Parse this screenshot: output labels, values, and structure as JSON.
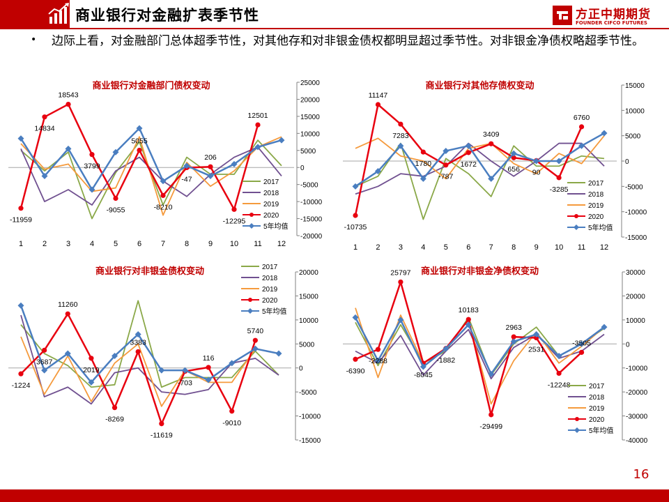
{
  "header": {
    "title": "商业银行对金融扩表季节性",
    "logo_cn": "方正中期期货",
    "logo_en": "FOUNDER CIFCO FUTURES",
    "accent_color": "#c00000"
  },
  "bullet": {
    "text": "边际上看，对金融部门总体超季节性，对其他存和对非银金债权都明显超过季节性。对非银金净债权略超季节性。"
  },
  "page_number": "16",
  "chart_data": [
    {
      "type": "line",
      "title": "商业银行对金融部门债权变动",
      "x": [
        "1",
        "2",
        "3",
        "4",
        "5",
        "6",
        "7",
        "8",
        "9",
        "10",
        "11",
        "12"
      ],
      "ylim": [
        -20000,
        25000
      ],
      "yticks": [
        -20000,
        -15000,
        -10000,
        -5000,
        0,
        5000,
        10000,
        15000,
        20000,
        25000
      ],
      "legend_position": "bottom-right",
      "series": [
        {
          "name": "2017",
          "color": "#8aa848",
          "marker": false,
          "values": [
            5000,
            -1000,
            4500,
            -15000,
            -1500,
            7500,
            -11000,
            3000,
            -2000,
            -2000,
            8000,
            500
          ]
        },
        {
          "name": "2018",
          "color": "#705090",
          "marker": false,
          "values": [
            5500,
            -10000,
            -6500,
            -11000,
            -1000,
            3000,
            -4000,
            -8500,
            -2000,
            3000,
            6000,
            -2500
          ]
        },
        {
          "name": "2019",
          "color": "#f59a3c",
          "marker": false,
          "values": [
            7000,
            -500,
            1000,
            -7000,
            -6000,
            9000,
            -14000,
            1500,
            -5500,
            -1000,
            6000,
            9000
          ]
        },
        {
          "name": "2020",
          "color": "#e8000f",
          "marker": true,
          "marker_shape": "circle",
          "values": [
            -11959,
            14834,
            18543,
            3799,
            -9055,
            5055,
            -8210,
            -47,
            206,
            -12295,
            12501,
            null
          ]
        },
        {
          "name": "5年均值",
          "color": "#4a7ec0",
          "marker": true,
          "marker_shape": "diamond",
          "values": [
            8500,
            -2500,
            5500,
            -6500,
            4500,
            11500,
            -4000,
            500,
            -2500,
            1000,
            6000,
            8000
          ]
        }
      ],
      "data_labels": {
        "series": "2020",
        "labels": [
          "-11959",
          "14834",
          "18543",
          "3799",
          "-9055",
          "5055",
          "-8210",
          "-47",
          "206",
          "-12295",
          "12501",
          ""
        ]
      }
    },
    {
      "type": "line",
      "title": "商业银行对其他存债权变动",
      "x": [
        "1",
        "2",
        "3",
        "4",
        "5",
        "6",
        "7",
        "8",
        "9",
        "10",
        "11",
        "12"
      ],
      "ylim": [
        -15000,
        15000
      ],
      "yticks": [
        -15000,
        -10000,
        -5000,
        0,
        5000,
        10000,
        15000
      ],
      "legend_position": "bottom-right",
      "series": [
        {
          "name": "2017",
          "color": "#8aa848",
          "marker": false,
          "values": [
            -5000,
            -3000,
            3500,
            -11500,
            500,
            -2500,
            -7000,
            3000,
            -1000,
            -1000,
            1000,
            500
          ]
        },
        {
          "name": "2018",
          "color": "#705090",
          "marker": false,
          "values": [
            -6500,
            -5000,
            -2500,
            -3000,
            -1000,
            3500,
            0,
            -3000,
            0,
            3500,
            3500,
            -1000
          ]
        },
        {
          "name": "2019",
          "color": "#f59a3c",
          "marker": false,
          "values": [
            2500,
            4500,
            1000,
            0,
            -3500,
            2500,
            3500,
            -500,
            -2500,
            1500,
            -500,
            5000
          ]
        },
        {
          "name": "2020",
          "color": "#e8000f",
          "marker": true,
          "marker_shape": "circle",
          "values": [
            -10735,
            11147,
            7283,
            1780,
            -787,
            1672,
            3409,
            656,
            90,
            -3285,
            6760,
            null
          ]
        },
        {
          "name": "5年均值",
          "color": "#4a7ec0",
          "marker": true,
          "marker_shape": "diamond",
          "values": [
            -5000,
            -2000,
            3000,
            -3500,
            2000,
            3000,
            -3500,
            1500,
            0,
            0,
            3000,
            5500
          ]
        }
      ],
      "data_labels": {
        "series": "2020",
        "labels": [
          "-10735",
          "11147",
          "7283",
          "1780",
          "-787",
          "1672",
          "3409",
          "656",
          "90",
          "-3285",
          "6760",
          ""
        ]
      }
    },
    {
      "type": "line",
      "title": "商业银行对非银金债权变动",
      "x": [
        "1",
        "2",
        "3",
        "4",
        "5",
        "6",
        "7",
        "8",
        "9",
        "10",
        "11",
        "12"
      ],
      "ylim": [
        -15000,
        20000
      ],
      "yticks": [
        -15000,
        -10000,
        -5000,
        0,
        5000,
        10000,
        15000,
        20000
      ],
      "legend_position": "top-right",
      "series": [
        {
          "name": "2017",
          "color": "#8aa848",
          "marker": false,
          "values": [
            9000,
            3000,
            500,
            -4000,
            -3500,
            14000,
            -4000,
            -2000,
            -2000,
            -2000,
            3500,
            -1500
          ]
        },
        {
          "name": "2018",
          "color": "#705090",
          "marker": false,
          "values": [
            11000,
            -6000,
            -4000,
            -7500,
            -1000,
            0,
            -5000,
            -5500,
            -4500,
            1000,
            2000,
            -1500
          ]
        },
        {
          "name": "2019",
          "color": "#f59a3c",
          "marker": false,
          "values": [
            6500,
            -5500,
            2500,
            -7000,
            1000,
            5000,
            -8000,
            -500,
            -3000,
            -3000,
            4000,
            3000
          ]
        },
        {
          "name": "2020",
          "color": "#e8000f",
          "marker": true,
          "marker_shape": "circle",
          "values": [
            -1224,
            3687,
            11260,
            2019,
            -8269,
            3383,
            -11619,
            -703,
            116,
            -9010,
            5740,
            null
          ]
        },
        {
          "name": "5年均值",
          "color": "#4a7ec0",
          "marker": true,
          "marker_shape": "diamond",
          "values": [
            13000,
            -500,
            3000,
            -3000,
            2500,
            7000,
            -500,
            -500,
            -2500,
            1000,
            4000,
            3000
          ]
        }
      ],
      "data_labels": {
        "series": "2020",
        "labels": [
          "-1224",
          "3687",
          "11260",
          "2019",
          "-8269",
          "3383",
          "-11619",
          "-703",
          "116",
          "-9010",
          "5740",
          ""
        ]
      }
    },
    {
      "type": "line",
      "title": "商业银行对非银金净债权变动",
      "x": [
        "1",
        "2",
        "3",
        "4",
        "5",
        "6",
        "7",
        "8",
        "9",
        "10",
        "11",
        "12"
      ],
      "ylim": [
        -40000,
        30000
      ],
      "yticks": [
        -40000,
        -30000,
        -20000,
        -10000,
        0,
        10000,
        20000,
        30000
      ],
      "legend_position": "bottom-right",
      "series": [
        {
          "name": "2017",
          "color": "#8aa848",
          "marker": false,
          "values": [
            9000,
            -9000,
            8000,
            -8000,
            -3000,
            11000,
            -13000,
            0,
            7000,
            -5000,
            0,
            6500
          ]
        },
        {
          "name": "2018",
          "color": "#705090",
          "marker": false,
          "values": [
            -3000,
            -8000,
            3500,
            -13000,
            -3000,
            6000,
            -14500,
            -1500,
            4000,
            -6000,
            -3000,
            4000
          ]
        },
        {
          "name": "2019",
          "color": "#f59a3c",
          "marker": false,
          "values": [
            15000,
            -14000,
            12000,
            -8000,
            -2000,
            10000,
            -25000,
            -7000,
            5000,
            -8000,
            -1000,
            7000
          ]
        },
        {
          "name": "2020",
          "color": "#e8000f",
          "marker": true,
          "marker_shape": "circle",
          "values": [
            -6390,
            -2288,
            25797,
            -8045,
            -1882,
            10183,
            -29499,
            2963,
            2531,
            -12248,
            -3505,
            null
          ]
        },
        {
          "name": "5年均值",
          "color": "#4a7ec0",
          "marker": true,
          "marker_shape": "diamond",
          "values": [
            11000,
            -7000,
            10000,
            -9500,
            -2000,
            8000,
            -12500,
            1000,
            4000,
            -5000,
            0,
            7000
          ]
        }
      ],
      "data_labels": {
        "series": "2020",
        "labels": [
          "-6390",
          "-2288",
          "25797",
          "-8045",
          "-1882",
          "10183",
          "-29499",
          "2963",
          "2531",
          "-12248",
          "-3505",
          ""
        ]
      }
    }
  ]
}
